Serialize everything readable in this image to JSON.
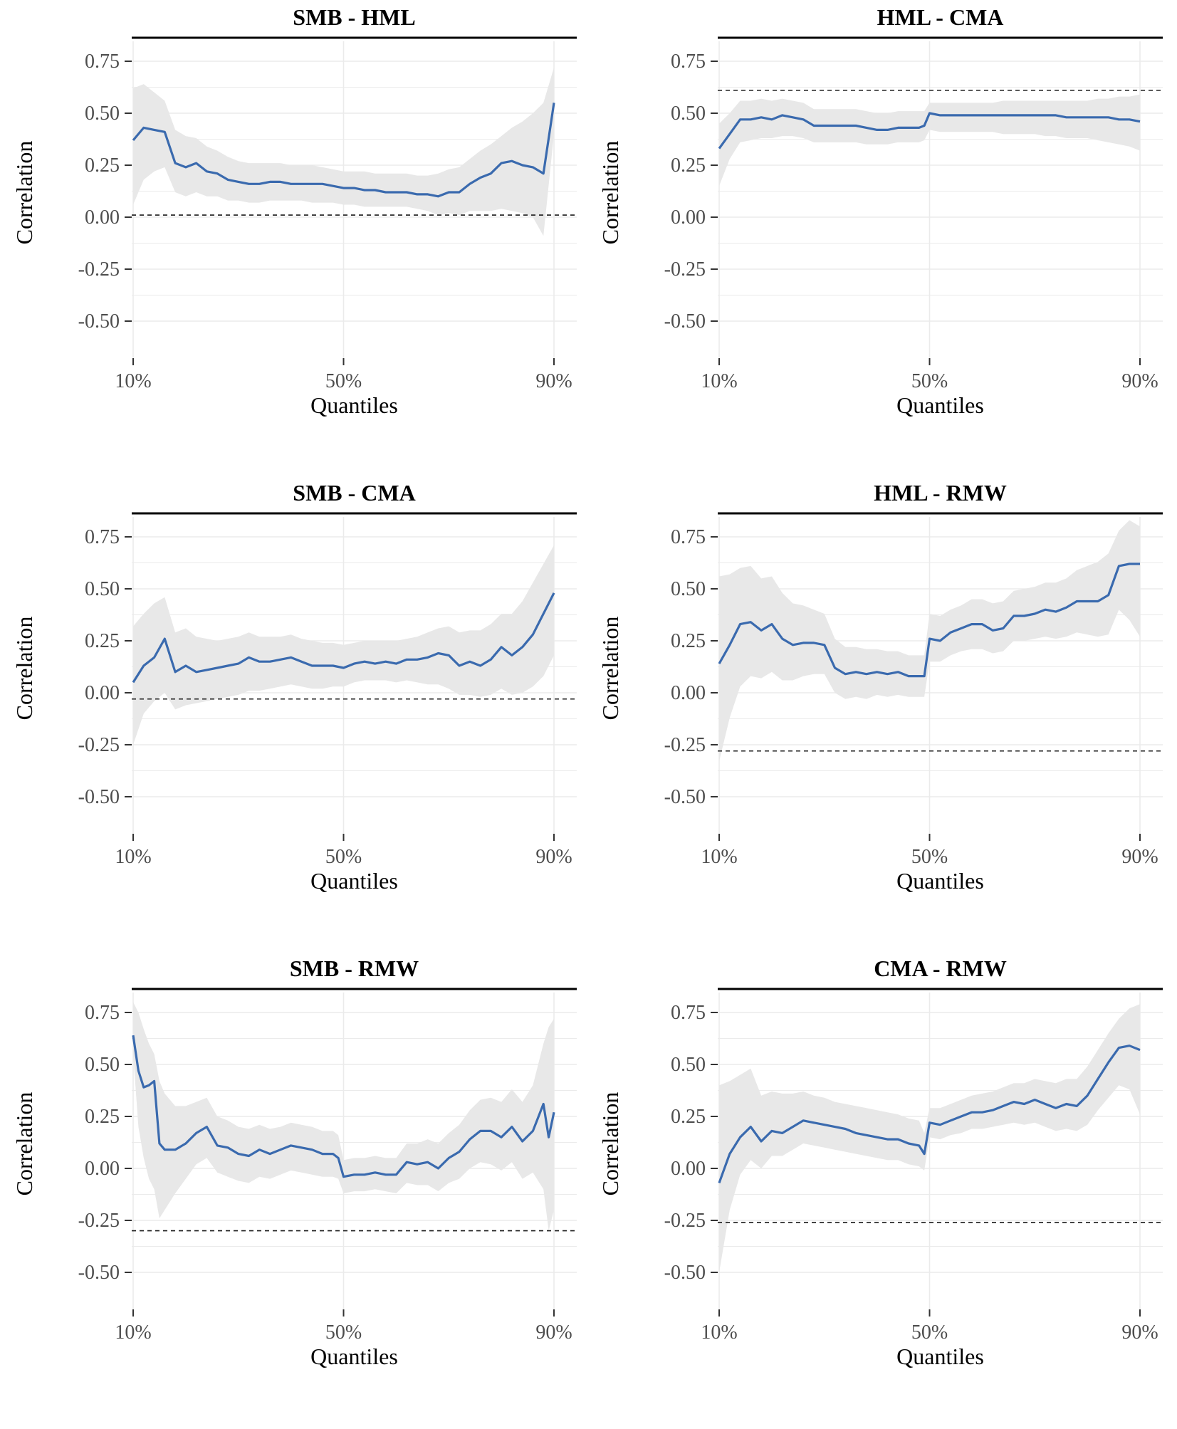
{
  "chart_data": [
    {
      "type": "line",
      "title": "SMB - HML",
      "xlabel": "Quantiles",
      "ylabel": "Correlation",
      "x_ticks": [
        "10%",
        "50%",
        "90%"
      ],
      "y_ticks": [
        "0.75",
        "0.50",
        "0.25",
        "0.00",
        "-0.25",
        "-0.50"
      ],
      "xlim": [
        0.1,
        0.9
      ],
      "ylim": [
        -0.5,
        0.75
      ],
      "reference_line": 0.01,
      "x": [
        0.1,
        0.12,
        0.14,
        0.16,
        0.18,
        0.2,
        0.22,
        0.24,
        0.26,
        0.28,
        0.3,
        0.32,
        0.34,
        0.36,
        0.38,
        0.4,
        0.42,
        0.44,
        0.46,
        0.48,
        0.5,
        0.52,
        0.54,
        0.56,
        0.58,
        0.6,
        0.62,
        0.64,
        0.66,
        0.68,
        0.7,
        0.72,
        0.74,
        0.76,
        0.78,
        0.8,
        0.82,
        0.84,
        0.86,
        0.88,
        0.9
      ],
      "y": [
        0.37,
        0.43,
        0.42,
        0.41,
        0.26,
        0.24,
        0.26,
        0.22,
        0.21,
        0.18,
        0.17,
        0.16,
        0.16,
        0.17,
        0.17,
        0.16,
        0.16,
        0.16,
        0.16,
        0.15,
        0.14,
        0.14,
        0.13,
        0.13,
        0.12,
        0.12,
        0.12,
        0.11,
        0.11,
        0.1,
        0.12,
        0.12,
        0.16,
        0.19,
        0.21,
        0.26,
        0.27,
        0.25,
        0.24,
        0.21,
        0.55
      ],
      "lower": [
        0.06,
        0.18,
        0.22,
        0.24,
        0.12,
        0.1,
        0.12,
        0.1,
        0.1,
        0.08,
        0.08,
        0.07,
        0.07,
        0.08,
        0.08,
        0.08,
        0.08,
        0.07,
        0.07,
        0.07,
        0.06,
        0.06,
        0.05,
        0.05,
        0.05,
        0.05,
        0.05,
        0.04,
        0.03,
        0.01,
        0.02,
        0.01,
        0.03,
        0.03,
        0.03,
        0.04,
        0.03,
        0.02,
        0.0,
        -0.09,
        0.4
      ],
      "upper": [
        0.62,
        0.64,
        0.6,
        0.56,
        0.42,
        0.39,
        0.38,
        0.34,
        0.32,
        0.29,
        0.27,
        0.26,
        0.26,
        0.26,
        0.26,
        0.25,
        0.25,
        0.25,
        0.24,
        0.23,
        0.22,
        0.22,
        0.22,
        0.21,
        0.21,
        0.21,
        0.21,
        0.2,
        0.2,
        0.21,
        0.23,
        0.24,
        0.28,
        0.32,
        0.35,
        0.39,
        0.43,
        0.46,
        0.5,
        0.55,
        0.72
      ]
    },
    {
      "type": "line",
      "title": "HML - CMA",
      "xlabel": "Quantiles",
      "ylabel": "Correlation",
      "x_ticks": [
        "10%",
        "50%",
        "90%"
      ],
      "y_ticks": [
        "0.75",
        "0.50",
        "0.25",
        "0.00",
        "-0.25",
        "-0.50"
      ],
      "xlim": [
        0.1,
        0.9
      ],
      "ylim": [
        -0.5,
        0.75
      ],
      "reference_line": 0.61,
      "x": [
        0.1,
        0.12,
        0.14,
        0.16,
        0.18,
        0.2,
        0.22,
        0.24,
        0.26,
        0.28,
        0.3,
        0.32,
        0.34,
        0.36,
        0.38,
        0.4,
        0.42,
        0.44,
        0.46,
        0.48,
        0.49,
        0.5,
        0.52,
        0.54,
        0.56,
        0.58,
        0.6,
        0.62,
        0.64,
        0.66,
        0.68,
        0.7,
        0.72,
        0.74,
        0.76,
        0.78,
        0.8,
        0.82,
        0.84,
        0.86,
        0.88,
        0.9
      ],
      "y": [
        0.33,
        0.4,
        0.47,
        0.47,
        0.48,
        0.47,
        0.49,
        0.48,
        0.47,
        0.44,
        0.44,
        0.44,
        0.44,
        0.44,
        0.43,
        0.42,
        0.42,
        0.43,
        0.43,
        0.43,
        0.44,
        0.5,
        0.49,
        0.49,
        0.49,
        0.49,
        0.49,
        0.49,
        0.49,
        0.49,
        0.49,
        0.49,
        0.49,
        0.49,
        0.48,
        0.48,
        0.48,
        0.48,
        0.48,
        0.47,
        0.47,
        0.46
      ],
      "lower": [
        0.15,
        0.28,
        0.36,
        0.37,
        0.38,
        0.38,
        0.39,
        0.39,
        0.38,
        0.36,
        0.36,
        0.36,
        0.36,
        0.36,
        0.35,
        0.35,
        0.35,
        0.36,
        0.36,
        0.36,
        0.37,
        0.42,
        0.41,
        0.41,
        0.41,
        0.41,
        0.41,
        0.41,
        0.4,
        0.4,
        0.4,
        0.4,
        0.39,
        0.39,
        0.38,
        0.38,
        0.38,
        0.37,
        0.36,
        0.35,
        0.34,
        0.32
      ],
      "upper": [
        0.45,
        0.5,
        0.56,
        0.56,
        0.57,
        0.56,
        0.57,
        0.56,
        0.55,
        0.52,
        0.52,
        0.52,
        0.52,
        0.52,
        0.51,
        0.5,
        0.5,
        0.51,
        0.51,
        0.51,
        0.51,
        0.55,
        0.55,
        0.55,
        0.55,
        0.55,
        0.55,
        0.55,
        0.56,
        0.56,
        0.56,
        0.56,
        0.56,
        0.56,
        0.56,
        0.56,
        0.56,
        0.57,
        0.57,
        0.58,
        0.58,
        0.59
      ]
    },
    {
      "type": "line",
      "title": "SMB - CMA",
      "xlabel": "Quantiles",
      "ylabel": "Correlation",
      "x_ticks": [
        "10%",
        "50%",
        "90%"
      ],
      "y_ticks": [
        "0.75",
        "0.50",
        "0.25",
        "0.00",
        "-0.25",
        "-0.50"
      ],
      "xlim": [
        0.1,
        0.9
      ],
      "ylim": [
        -0.5,
        0.75
      ],
      "reference_line": -0.03,
      "x": [
        0.1,
        0.12,
        0.14,
        0.16,
        0.18,
        0.2,
        0.22,
        0.24,
        0.26,
        0.28,
        0.3,
        0.32,
        0.34,
        0.36,
        0.38,
        0.4,
        0.42,
        0.44,
        0.46,
        0.48,
        0.5,
        0.52,
        0.54,
        0.56,
        0.58,
        0.6,
        0.62,
        0.64,
        0.66,
        0.68,
        0.7,
        0.72,
        0.74,
        0.76,
        0.78,
        0.8,
        0.82,
        0.84,
        0.86,
        0.88,
        0.9
      ],
      "y": [
        0.05,
        0.13,
        0.17,
        0.26,
        0.1,
        0.13,
        0.1,
        0.11,
        0.12,
        0.13,
        0.14,
        0.17,
        0.15,
        0.15,
        0.16,
        0.17,
        0.15,
        0.13,
        0.13,
        0.13,
        0.12,
        0.14,
        0.15,
        0.14,
        0.15,
        0.14,
        0.16,
        0.16,
        0.17,
        0.19,
        0.18,
        0.13,
        0.15,
        0.13,
        0.16,
        0.22,
        0.18,
        0.22,
        0.28,
        0.38,
        0.48
      ],
      "lower": [
        -0.25,
        -0.1,
        -0.04,
        0.0,
        -0.08,
        -0.06,
        -0.05,
        -0.04,
        -0.03,
        -0.02,
        -0.01,
        0.01,
        0.01,
        0.02,
        0.03,
        0.04,
        0.03,
        0.02,
        0.02,
        0.03,
        0.03,
        0.05,
        0.06,
        0.06,
        0.06,
        0.05,
        0.06,
        0.05,
        0.04,
        0.04,
        0.02,
        -0.01,
        -0.01,
        -0.02,
        -0.01,
        0.02,
        -0.01,
        0.0,
        0.03,
        0.08,
        0.18
      ],
      "upper": [
        0.32,
        0.38,
        0.43,
        0.46,
        0.29,
        0.31,
        0.27,
        0.26,
        0.25,
        0.26,
        0.27,
        0.29,
        0.27,
        0.27,
        0.27,
        0.28,
        0.26,
        0.25,
        0.24,
        0.24,
        0.23,
        0.24,
        0.25,
        0.25,
        0.25,
        0.25,
        0.26,
        0.27,
        0.29,
        0.31,
        0.32,
        0.29,
        0.3,
        0.3,
        0.33,
        0.38,
        0.38,
        0.44,
        0.53,
        0.62,
        0.71
      ]
    },
    {
      "type": "line",
      "title": "HML - RMW",
      "xlabel": "Quantiles",
      "ylabel": "Correlation",
      "x_ticks": [
        "10%",
        "50%",
        "90%"
      ],
      "y_ticks": [
        "0.75",
        "0.50",
        "0.25",
        "0.00",
        "-0.25",
        "-0.50"
      ],
      "xlim": [
        0.1,
        0.9
      ],
      "ylim": [
        -0.5,
        0.75
      ],
      "reference_line": -0.28,
      "x": [
        0.1,
        0.12,
        0.14,
        0.16,
        0.18,
        0.2,
        0.22,
        0.24,
        0.26,
        0.28,
        0.3,
        0.32,
        0.34,
        0.36,
        0.38,
        0.4,
        0.42,
        0.44,
        0.46,
        0.48,
        0.49,
        0.5,
        0.52,
        0.54,
        0.56,
        0.58,
        0.6,
        0.62,
        0.64,
        0.66,
        0.68,
        0.7,
        0.72,
        0.74,
        0.76,
        0.78,
        0.8,
        0.82,
        0.84,
        0.86,
        0.88,
        0.9
      ],
      "y": [
        0.14,
        0.23,
        0.33,
        0.34,
        0.3,
        0.33,
        0.26,
        0.23,
        0.24,
        0.24,
        0.23,
        0.12,
        0.09,
        0.1,
        0.09,
        0.1,
        0.09,
        0.1,
        0.08,
        0.08,
        0.08,
        0.26,
        0.25,
        0.29,
        0.31,
        0.33,
        0.33,
        0.3,
        0.31,
        0.37,
        0.37,
        0.38,
        0.4,
        0.39,
        0.41,
        0.44,
        0.44,
        0.44,
        0.47,
        0.61,
        0.62,
        0.62
      ],
      "lower": [
        -0.33,
        -0.12,
        0.03,
        0.08,
        0.07,
        0.1,
        0.06,
        0.06,
        0.08,
        0.09,
        0.09,
        0.0,
        -0.03,
        -0.02,
        -0.03,
        -0.01,
        -0.02,
        -0.01,
        -0.02,
        -0.02,
        -0.02,
        0.15,
        0.15,
        0.18,
        0.2,
        0.21,
        0.21,
        0.19,
        0.2,
        0.25,
        0.25,
        0.26,
        0.27,
        0.26,
        0.27,
        0.29,
        0.28,
        0.27,
        0.28,
        0.4,
        0.35,
        0.27
      ],
      "upper": [
        0.56,
        0.57,
        0.6,
        0.61,
        0.55,
        0.56,
        0.48,
        0.43,
        0.42,
        0.4,
        0.38,
        0.26,
        0.22,
        0.22,
        0.21,
        0.21,
        0.2,
        0.2,
        0.18,
        0.18,
        0.18,
        0.38,
        0.37,
        0.4,
        0.42,
        0.45,
        0.45,
        0.43,
        0.44,
        0.49,
        0.5,
        0.51,
        0.53,
        0.53,
        0.55,
        0.59,
        0.61,
        0.63,
        0.67,
        0.78,
        0.83,
        0.8
      ]
    },
    {
      "type": "line",
      "title": "SMB - RMW",
      "xlabel": "Quantiles",
      "ylabel": "Correlation",
      "x_ticks": [
        "10%",
        "50%",
        "90%"
      ],
      "y_ticks": [
        "0.75",
        "0.50",
        "0.25",
        "0.00",
        "-0.25",
        "-0.50"
      ],
      "xlim": [
        0.1,
        0.9
      ],
      "ylim": [
        -0.5,
        0.75
      ],
      "reference_line": -0.3,
      "x": [
        0.1,
        0.11,
        0.12,
        0.13,
        0.14,
        0.15,
        0.16,
        0.18,
        0.2,
        0.22,
        0.24,
        0.26,
        0.28,
        0.3,
        0.32,
        0.34,
        0.36,
        0.38,
        0.4,
        0.42,
        0.44,
        0.46,
        0.48,
        0.49,
        0.5,
        0.52,
        0.54,
        0.56,
        0.58,
        0.6,
        0.62,
        0.64,
        0.66,
        0.68,
        0.7,
        0.72,
        0.74,
        0.76,
        0.78,
        0.8,
        0.82,
        0.84,
        0.86,
        0.88,
        0.89,
        0.9
      ],
      "y": [
        0.64,
        0.47,
        0.39,
        0.4,
        0.42,
        0.12,
        0.09,
        0.09,
        0.12,
        0.17,
        0.2,
        0.11,
        0.1,
        0.07,
        0.06,
        0.09,
        0.07,
        0.09,
        0.11,
        0.1,
        0.09,
        0.07,
        0.07,
        0.05,
        -0.04,
        -0.03,
        -0.03,
        -0.02,
        -0.03,
        -0.03,
        0.03,
        0.02,
        0.03,
        0.0,
        0.05,
        0.08,
        0.14,
        0.18,
        0.18,
        0.15,
        0.2,
        0.13,
        0.18,
        0.31,
        0.15,
        0.27
      ],
      "lower": [
        0.55,
        0.2,
        0.05,
        -0.05,
        -0.1,
        -0.24,
        -0.2,
        -0.12,
        -0.05,
        0.02,
        0.05,
        -0.02,
        -0.04,
        -0.06,
        -0.07,
        -0.04,
        -0.05,
        -0.03,
        -0.01,
        -0.02,
        -0.03,
        -0.04,
        -0.04,
        -0.05,
        -0.12,
        -0.11,
        -0.11,
        -0.1,
        -0.11,
        -0.12,
        -0.07,
        -0.08,
        -0.08,
        -0.11,
        -0.07,
        -0.05,
        0.0,
        0.03,
        0.02,
        -0.01,
        0.03,
        -0.05,
        -0.02,
        -0.1,
        -0.3,
        -0.2
      ],
      "upper": [
        0.8,
        0.75,
        0.67,
        0.6,
        0.55,
        0.42,
        0.36,
        0.3,
        0.3,
        0.32,
        0.34,
        0.25,
        0.23,
        0.2,
        0.19,
        0.21,
        0.19,
        0.2,
        0.22,
        0.21,
        0.2,
        0.18,
        0.18,
        0.16,
        0.04,
        0.05,
        0.05,
        0.06,
        0.05,
        0.05,
        0.12,
        0.12,
        0.14,
        0.12,
        0.17,
        0.21,
        0.28,
        0.33,
        0.34,
        0.32,
        0.38,
        0.32,
        0.4,
        0.6,
        0.68,
        0.72
      ]
    },
    {
      "type": "line",
      "title": "CMA - RMW",
      "xlabel": "Quantiles",
      "ylabel": "Correlation",
      "x_ticks": [
        "10%",
        "50%",
        "90%"
      ],
      "y_ticks": [
        "0.75",
        "0.50",
        "0.25",
        "0.00",
        "-0.25",
        "-0.50"
      ],
      "xlim": [
        0.1,
        0.9
      ],
      "ylim": [
        -0.5,
        0.75
      ],
      "reference_line": -0.26,
      "x": [
        0.1,
        0.12,
        0.14,
        0.16,
        0.18,
        0.2,
        0.22,
        0.24,
        0.26,
        0.28,
        0.3,
        0.32,
        0.34,
        0.36,
        0.38,
        0.4,
        0.42,
        0.44,
        0.46,
        0.48,
        0.49,
        0.5,
        0.52,
        0.54,
        0.56,
        0.58,
        0.6,
        0.62,
        0.64,
        0.66,
        0.68,
        0.7,
        0.72,
        0.74,
        0.76,
        0.78,
        0.8,
        0.82,
        0.84,
        0.86,
        0.88,
        0.9
      ],
      "y": [
        -0.07,
        0.07,
        0.15,
        0.2,
        0.13,
        0.18,
        0.17,
        0.2,
        0.23,
        0.22,
        0.21,
        0.2,
        0.19,
        0.17,
        0.16,
        0.15,
        0.14,
        0.14,
        0.12,
        0.11,
        0.07,
        0.22,
        0.21,
        0.23,
        0.25,
        0.27,
        0.27,
        0.28,
        0.3,
        0.32,
        0.31,
        0.33,
        0.31,
        0.29,
        0.31,
        0.3,
        0.35,
        0.43,
        0.51,
        0.58,
        0.59,
        0.57
      ],
      "lower": [
        -0.5,
        -0.2,
        -0.03,
        0.04,
        0.0,
        0.06,
        0.06,
        0.09,
        0.12,
        0.11,
        0.1,
        0.09,
        0.08,
        0.07,
        0.06,
        0.05,
        0.04,
        0.04,
        0.02,
        0.01,
        -0.01,
        0.15,
        0.14,
        0.16,
        0.17,
        0.19,
        0.19,
        0.2,
        0.21,
        0.22,
        0.21,
        0.22,
        0.2,
        0.18,
        0.19,
        0.18,
        0.21,
        0.28,
        0.34,
        0.4,
        0.38,
        0.26
      ],
      "upper": [
        0.4,
        0.42,
        0.45,
        0.48,
        0.35,
        0.37,
        0.36,
        0.36,
        0.37,
        0.35,
        0.34,
        0.32,
        0.31,
        0.3,
        0.29,
        0.28,
        0.27,
        0.26,
        0.24,
        0.23,
        0.17,
        0.29,
        0.29,
        0.31,
        0.33,
        0.35,
        0.36,
        0.37,
        0.39,
        0.41,
        0.41,
        0.43,
        0.42,
        0.41,
        0.43,
        0.43,
        0.49,
        0.57,
        0.65,
        0.72,
        0.77,
        0.79
      ]
    }
  ],
  "colors": {
    "line": "#3a6aae",
    "ribbon": "#e8e8e8",
    "grid": "#ebebeb",
    "reference_line": "#1a1a1a",
    "strip_rule": "#000000"
  }
}
